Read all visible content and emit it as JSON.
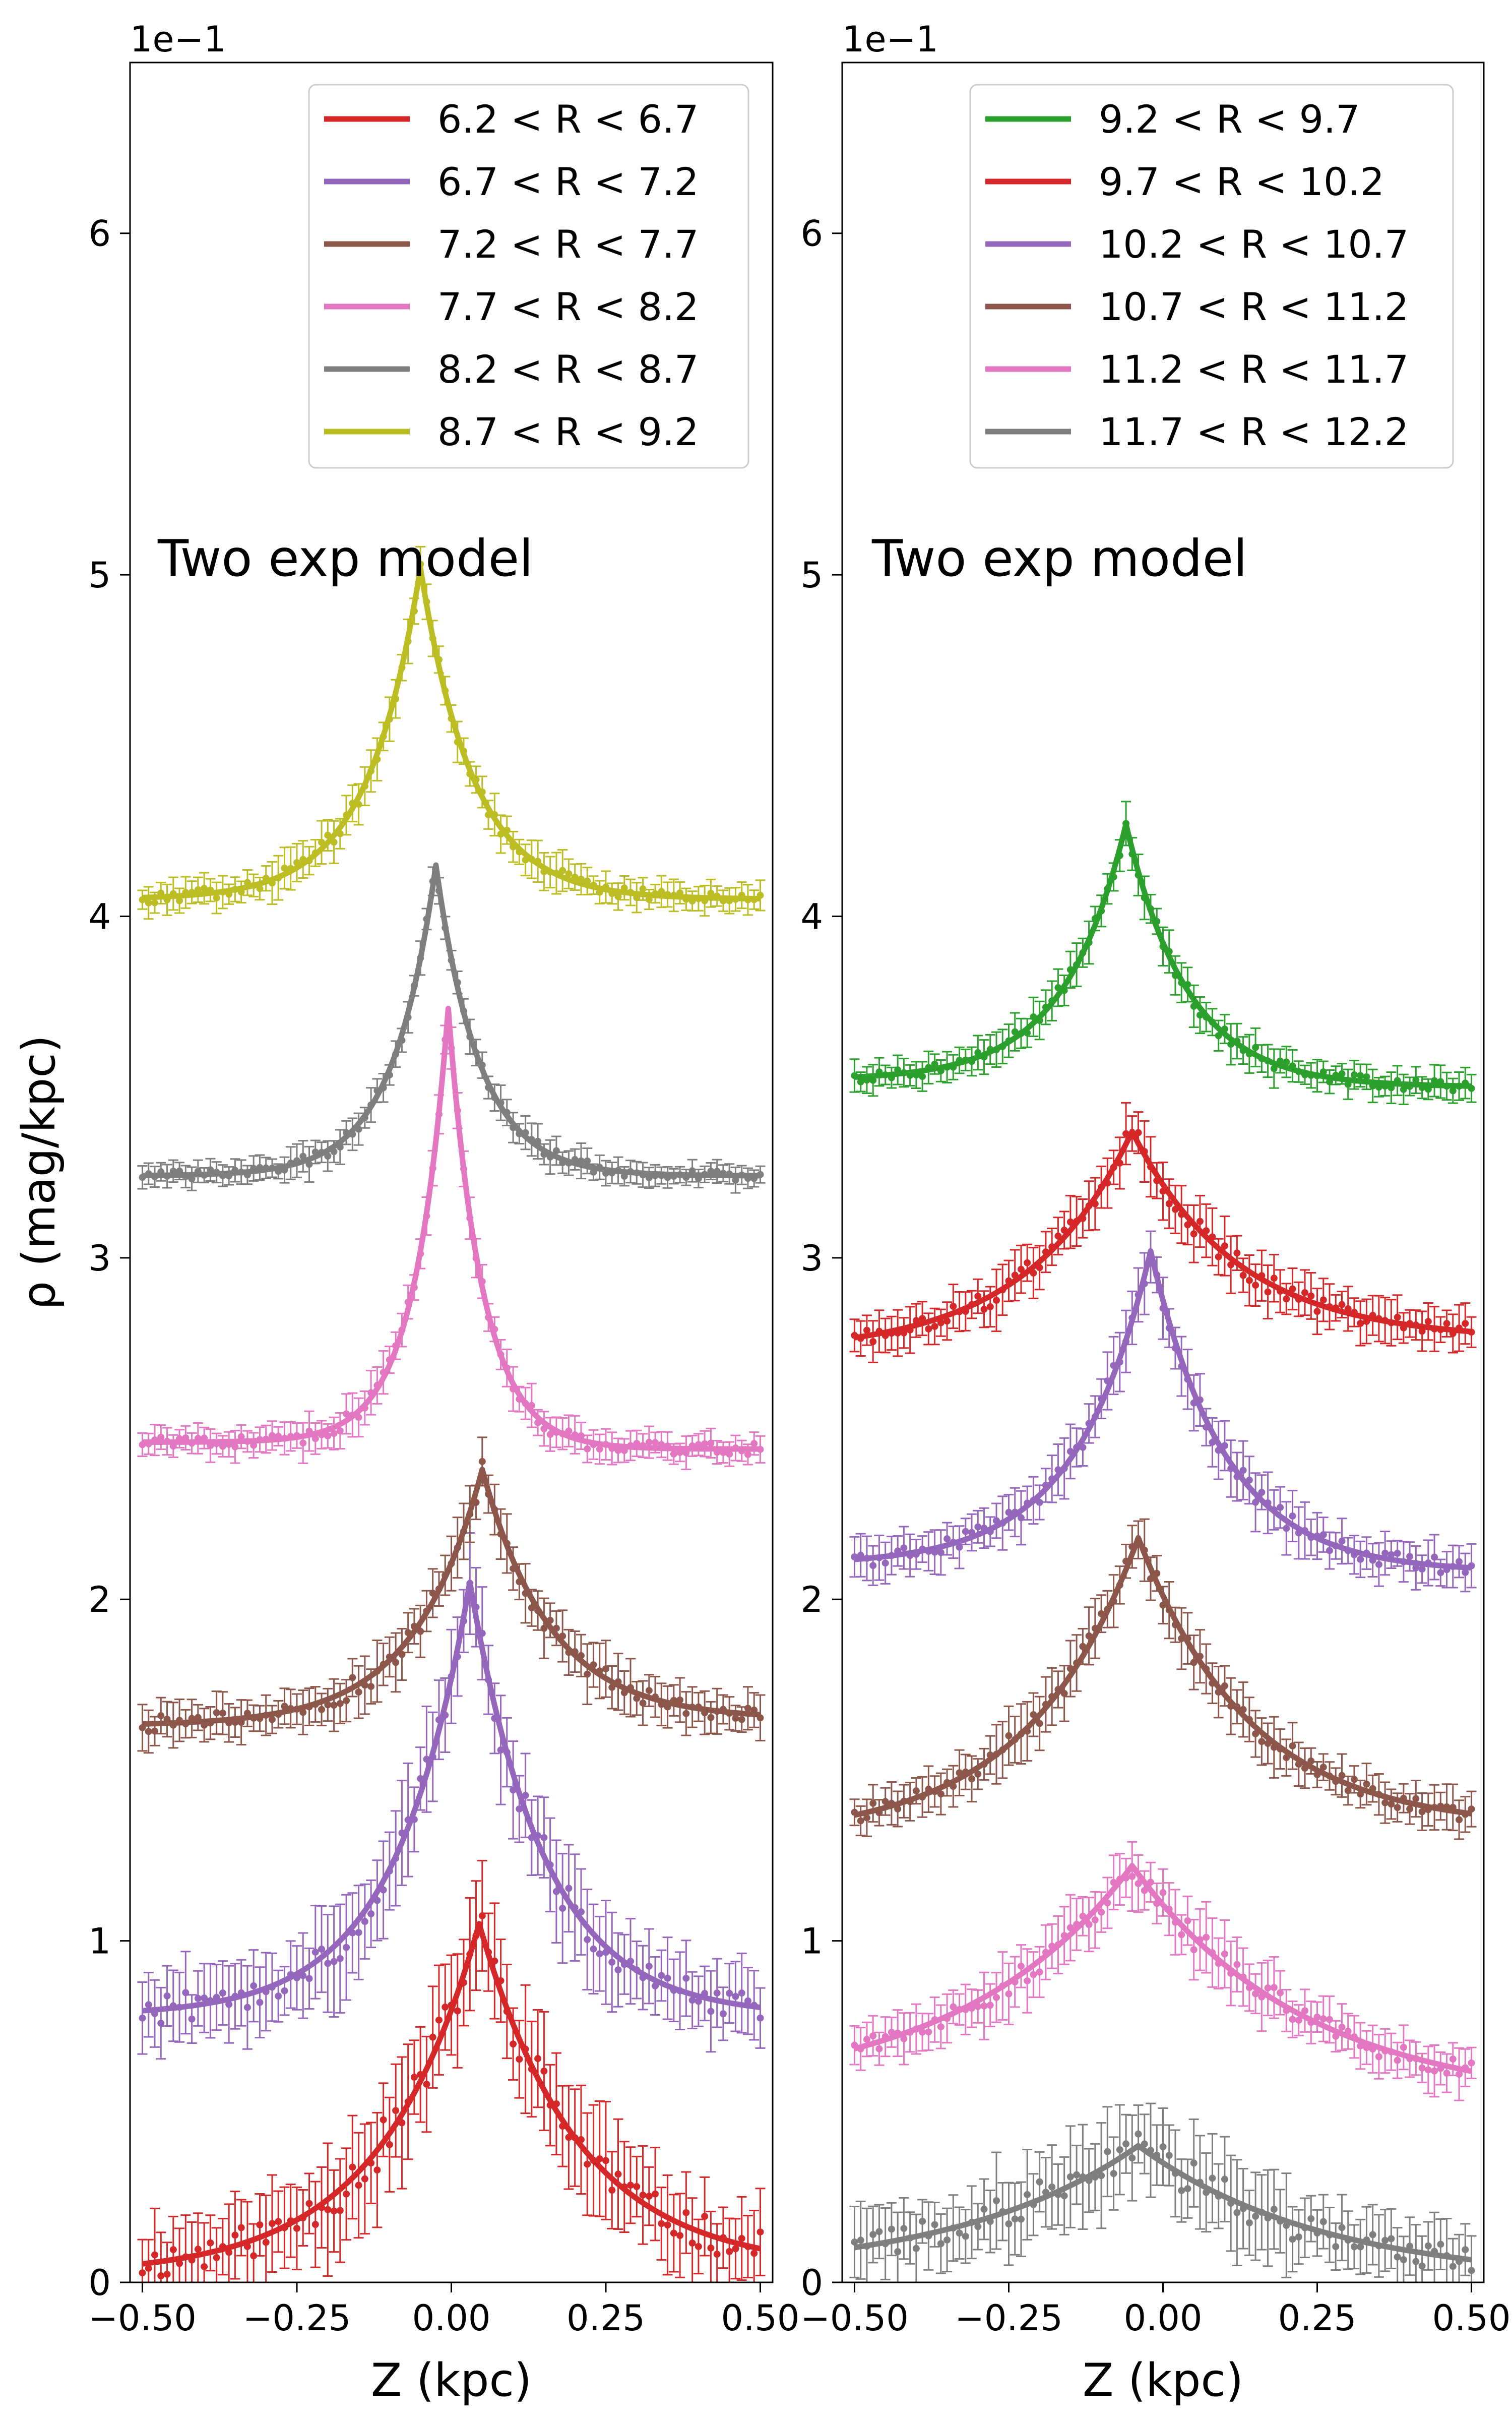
{
  "chart_data": [
    {
      "type": "line",
      "panel": "left",
      "annotation": "Two exp model",
      "xlabel": "Z (kpc)",
      "ylabel": "ρ (mag/kpc)",
      "offset_label": "1e−1",
      "xlim": [
        -0.52,
        0.52
      ],
      "ylim": [
        0,
        6.5
      ],
      "xticks": [
        -0.5,
        -0.25,
        0.0,
        0.25,
        0.5
      ],
      "xtick_labels": [
        "−0.50",
        "−0.25",
        "0.00",
        "0.25",
        "0.50"
      ],
      "yticks": [
        0,
        1,
        2,
        3,
        4,
        5,
        6
      ],
      "ytick_labels": [
        "0",
        "1",
        "2",
        "3",
        "4",
        "5",
        "6"
      ],
      "legend_position": "upper right",
      "series": [
        {
          "name": "6.2 < R < 6.7",
          "color": "#d62728",
          "z0": 0.045,
          "peak": 1.05,
          "base_left": 0.02,
          "base_right": 0.04,
          "scale": 0.16,
          "err": 0.15
        },
        {
          "name": "6.7 < R < 7.2",
          "color": "#9467bd",
          "z0": 0.03,
          "peak": 2.05,
          "base_left": 0.78,
          "base_right": 0.78,
          "scale": 0.12,
          "err": 0.13
        },
        {
          "name": "7.2 < R < 7.7",
          "color": "#8c564b",
          "z0": 0.05,
          "peak": 2.38,
          "base_left": 1.63,
          "base_right": 1.65,
          "scale": 0.11,
          "err": 0.07
        },
        {
          "name": "7.7 < R < 8.2",
          "color": "#e377c2",
          "z0": -0.005,
          "peak": 3.73,
          "base_left": 2.46,
          "base_right": 2.44,
          "scale": 0.055,
          "err": 0.05
        },
        {
          "name": "8.2 < R < 8.7",
          "color": "#7f7f7f",
          "z0": -0.025,
          "peak": 4.15,
          "base_left": 3.24,
          "base_right": 3.24,
          "scale": 0.07,
          "err": 0.04
        },
        {
          "name": "8.7 < R < 9.2",
          "color": "#bcbd22",
          "z0": -0.05,
          "peak": 5.02,
          "base_left": 4.05,
          "base_right": 4.05,
          "scale": 0.085,
          "err": 0.05
        }
      ]
    },
    {
      "type": "line",
      "panel": "right",
      "annotation": "Two exp model",
      "xlabel": "Z (kpc)",
      "offset_label": "1e−1",
      "xlim": [
        -0.52,
        0.52
      ],
      "ylim": [
        0,
        6.5
      ],
      "xticks": [
        -0.5,
        -0.25,
        0.0,
        0.25,
        0.5
      ],
      "xtick_labels": [
        "−0.50",
        "−0.25",
        "0.00",
        "0.25",
        "0.50"
      ],
      "yticks": [
        0,
        1,
        2,
        3,
        4,
        5,
        6
      ],
      "ytick_labels": [
        "0",
        "1",
        "2",
        "3",
        "4",
        "5",
        "6"
      ],
      "legend_position": "upper right",
      "series": [
        {
          "name": "9.2 < R < 9.7",
          "color": "#2ca02c",
          "z0": -0.06,
          "peak": 4.27,
          "base_left": 3.52,
          "base_right": 3.5,
          "scale": 0.1,
          "err": 0.05
        },
        {
          "name": "9.7 < R < 10.2",
          "color": "#d62728",
          "z0": -0.05,
          "peak": 3.37,
          "base_left": 2.72,
          "base_right": 2.76,
          "scale": 0.17,
          "err": 0.07
        },
        {
          "name": "10.2 < R < 10.7",
          "color": "#9467bd",
          "z0": -0.02,
          "peak": 3.02,
          "base_left": 2.1,
          "base_right": 2.08,
          "scale": 0.12,
          "err": 0.07
        },
        {
          "name": "10.7 < R < 11.2",
          "color": "#8c564b",
          "z0": -0.04,
          "peak": 2.18,
          "base_left": 1.3,
          "base_right": 1.33,
          "scale": 0.18,
          "err": 0.07
        },
        {
          "name": "11.2 < R < 11.7",
          "color": "#e377c2",
          "z0": -0.05,
          "peak": 1.22,
          "base_left": 0.55,
          "base_right": 0.52,
          "scale": 0.28,
          "err": 0.08
        },
        {
          "name": "11.7 < R < 12.2",
          "color": "#7f7f7f",
          "z0": -0.04,
          "peak": 0.4,
          "base_left": 0.02,
          "base_right": 0.0,
          "scale": 0.3,
          "err": 0.12
        }
      ]
    }
  ]
}
